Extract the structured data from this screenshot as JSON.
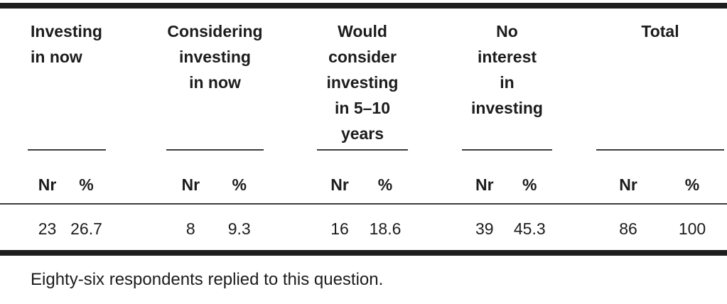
{
  "table": {
    "column_groups": [
      {
        "header": "Investing\nin now",
        "nr_label": "Nr",
        "pct_label": "%",
        "nr_value": "23",
        "pct_value": "26.7"
      },
      {
        "header": "Considering\ninvesting\nin now",
        "nr_label": "Nr",
        "pct_label": "%",
        "nr_value": "8",
        "pct_value": "9.3"
      },
      {
        "header": "Would\nconsider\ninvesting\nin 5–10\nyears",
        "nr_label": "Nr",
        "pct_label": "%",
        "nr_value": "16",
        "pct_value": "18.6"
      },
      {
        "header": "No\ninterest\nin\ninvesting",
        "nr_label": "Nr",
        "pct_label": "%",
        "nr_value": "39",
        "pct_value": "45.3"
      },
      {
        "header": "Total",
        "nr_label": "Nr",
        "pct_label": "%",
        "nr_value": "86",
        "pct_value": "100"
      }
    ],
    "footnote": "Eighty-six respondents replied to this question."
  },
  "colors": {
    "background": "#ffffff",
    "text": "#1c1c1c",
    "rule_thick": "#1e1e1e",
    "rule_thin": "#3c3c3c"
  },
  "chart_data": {
    "type": "table",
    "title": "",
    "columns": [
      "Investing in now",
      "Considering investing in now",
      "Would consider investing in 5–10 years",
      "No interest in investing",
      "Total"
    ],
    "sub_columns": [
      "Nr",
      "%"
    ],
    "rows": [
      {
        "category": "Investing in now",
        "Nr": 23,
        "pct": 26.7
      },
      {
        "category": "Considering investing in now",
        "Nr": 8,
        "pct": 9.3
      },
      {
        "category": "Would consider investing in 5–10 years",
        "Nr": 16,
        "pct": 18.6
      },
      {
        "category": "No interest in investing",
        "Nr": 39,
        "pct": 45.3
      },
      {
        "category": "Total",
        "Nr": 86,
        "pct": 100
      }
    ]
  }
}
